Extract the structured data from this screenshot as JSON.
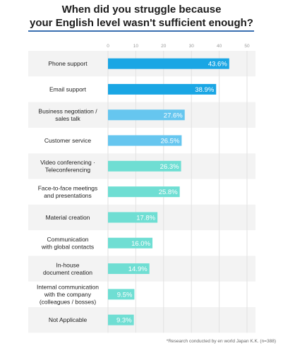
{
  "chart_data": {
    "type": "bar",
    "orientation": "horizontal",
    "title": [
      "When did you struggle because",
      "your English level wasn't sufficient enough?"
    ],
    "xlim": [
      0,
      50
    ],
    "x_ticks": [
      0,
      10,
      20,
      30,
      40,
      50
    ],
    "grid": true,
    "categories": [
      [
        "Phone support"
      ],
      [
        "Email support"
      ],
      [
        "Business negotiation /",
        "sales talk"
      ],
      [
        "Customer service"
      ],
      [
        "Video conferencing ·",
        "Teleconferencing"
      ],
      [
        "Face-to-face meetings",
        "and presentations"
      ],
      [
        "Material creation"
      ],
      [
        "Communication",
        "with global contacts"
      ],
      [
        "In-house",
        "document creation"
      ],
      [
        "Internal communication",
        "with the company",
        "(colleagues / bosses)"
      ],
      [
        "Not Applicable"
      ]
    ],
    "values": [
      43.6,
      38.9,
      27.6,
      26.5,
      26.3,
      25.8,
      17.8,
      16.0,
      14.9,
      9.5,
      9.3
    ],
    "value_labels": [
      "43.6%",
      "38.9%",
      "27.6%",
      "26.5%",
      "26.3%",
      "25.8%",
      "17.8%",
      "16.0%",
      "14.9%",
      "9.5%",
      "9.3%"
    ],
    "bar_colors": [
      "#1aa6e4",
      "#1aa6e4",
      "#66c6ef",
      "#66c6ef",
      "#6fded3",
      "#6fded3",
      "#6fded3",
      "#6fded3",
      "#6fded3",
      "#6fded3",
      "#6fded3"
    ]
  },
  "footnote": "*Research conducted by en world Japan K.K. (n=388)"
}
